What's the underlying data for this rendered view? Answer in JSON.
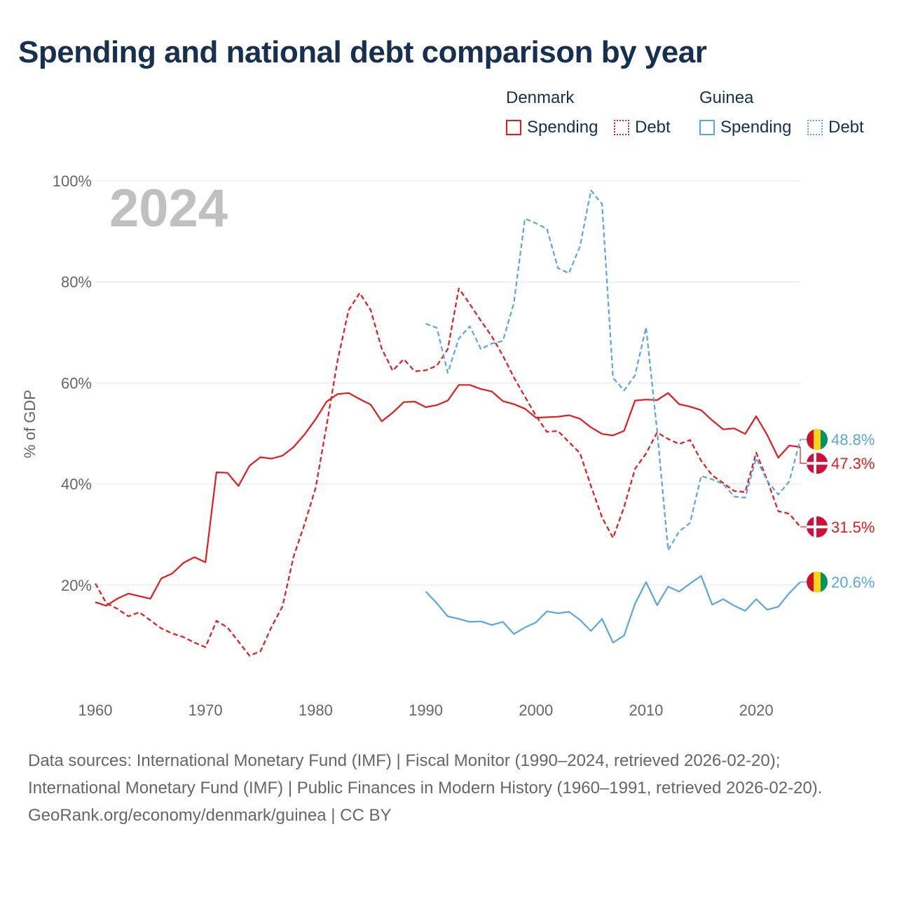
{
  "title": "Spending and national debt comparison by year",
  "legend": {
    "countries": [
      {
        "name": "Denmark",
        "color": "#e41a1c",
        "items": [
          {
            "label": "Spending",
            "style": "solid"
          },
          {
            "label": "Debt",
            "style": "dotted"
          }
        ]
      },
      {
        "name": "Guinea",
        "color": "#5aa6e0",
        "items": [
          {
            "label": "Spending",
            "style": "solid"
          },
          {
            "label": "Debt",
            "style": "dotted"
          }
        ]
      }
    ]
  },
  "footer": {
    "sources": "Data sources: International Monetary Fund (IMF) | Fiscal Monitor (1990–2024, retrieved 2026-02-20); International Monetary Fund (IMF) | Public Finances in Modern History (1960–1991, retrieved 2026-02-20).",
    "credit": "GeoRank.org/economy/denmark/guinea | CC BY"
  },
  "chart_data": {
    "type": "line",
    "year_watermark": "2024",
    "ylabel": "% of GDP",
    "xlabel": "",
    "xlim": [
      1960,
      2024
    ],
    "ylim": [
      0,
      100
    ],
    "x_ticks": [
      1960,
      1970,
      1980,
      1990,
      2000,
      2010,
      2020
    ],
    "y_ticks": [
      20,
      40,
      60,
      80,
      100
    ],
    "y_tick_labels": [
      "20%",
      "40%",
      "60%",
      "80%",
      "100%"
    ],
    "grid": true,
    "series": [
      {
        "name": "Denmark Spending",
        "country": "Denmark",
        "color": "#e41a1c",
        "dash": "solid",
        "end_label": "47.3%",
        "flag": "denmark",
        "points": [
          [
            1960,
            16.6
          ],
          [
            1961,
            15.9
          ],
          [
            1962,
            17.3
          ],
          [
            1963,
            18.3
          ],
          [
            1964,
            17.8
          ],
          [
            1965,
            17.3
          ],
          [
            1966,
            21.3
          ],
          [
            1967,
            22.3
          ],
          [
            1968,
            24.4
          ],
          [
            1969,
            25.5
          ],
          [
            1970,
            24.5
          ],
          [
            1971,
            42.3
          ],
          [
            1972,
            42.2
          ],
          [
            1973,
            39.6
          ],
          [
            1974,
            43.6
          ],
          [
            1975,
            45.3
          ],
          [
            1976,
            45.0
          ],
          [
            1977,
            45.6
          ],
          [
            1978,
            47.3
          ],
          [
            1979,
            49.8
          ],
          [
            1980,
            52.8
          ],
          [
            1981,
            56.3
          ],
          [
            1982,
            57.8
          ],
          [
            1983,
            58.0
          ],
          [
            1984,
            56.8
          ],
          [
            1985,
            55.7
          ],
          [
            1986,
            52.4
          ],
          [
            1987,
            54.1
          ],
          [
            1988,
            56.2
          ],
          [
            1989,
            56.3
          ],
          [
            1990,
            55.2
          ],
          [
            1991,
            55.6
          ],
          [
            1992,
            56.5
          ],
          [
            1993,
            59.6
          ],
          [
            1994,
            59.6
          ],
          [
            1995,
            58.8
          ],
          [
            1996,
            58.3
          ],
          [
            1997,
            56.4
          ],
          [
            1998,
            55.8
          ],
          [
            1999,
            54.9
          ],
          [
            2000,
            53.1
          ],
          [
            2001,
            53.2
          ],
          [
            2002,
            53.3
          ],
          [
            2003,
            53.6
          ],
          [
            2004,
            52.9
          ],
          [
            2005,
            51.2
          ],
          [
            2006,
            49.9
          ],
          [
            2007,
            49.6
          ],
          [
            2008,
            50.5
          ],
          [
            2009,
            56.5
          ],
          [
            2010,
            56.7
          ],
          [
            2011,
            56.6
          ],
          [
            2012,
            58.0
          ],
          [
            2013,
            55.8
          ],
          [
            2014,
            55.3
          ],
          [
            2015,
            54.6
          ],
          [
            2016,
            52.6
          ],
          [
            2017,
            50.8
          ],
          [
            2018,
            51.0
          ],
          [
            2019,
            49.9
          ],
          [
            2020,
            53.4
          ],
          [
            2021,
            49.7
          ],
          [
            2022,
            45.2
          ],
          [
            2023,
            47.6
          ],
          [
            2024,
            47.3
          ]
        ]
      },
      {
        "name": "Denmark Debt",
        "country": "Denmark",
        "color": "#e41a1c",
        "dash": "dashed",
        "end_label": "31.5%",
        "flag": "denmark",
        "points": [
          [
            1960,
            20.3
          ],
          [
            1961,
            16.4
          ],
          [
            1962,
            15.3
          ],
          [
            1963,
            13.8
          ],
          [
            1964,
            14.6
          ],
          [
            1965,
            13.0
          ],
          [
            1966,
            11.4
          ],
          [
            1967,
            10.4
          ],
          [
            1968,
            9.7
          ],
          [
            1969,
            8.6
          ],
          [
            1970,
            7.7
          ],
          [
            1971,
            12.9
          ],
          [
            1972,
            11.6
          ],
          [
            1973,
            8.8
          ],
          [
            1974,
            6.0
          ],
          [
            1975,
            6.9
          ],
          [
            1976,
            11.7
          ],
          [
            1977,
            15.8
          ],
          [
            1978,
            25.6
          ],
          [
            1979,
            32.1
          ],
          [
            1980,
            39.2
          ],
          [
            1981,
            51.6
          ],
          [
            1982,
            64.5
          ],
          [
            1983,
            74.4
          ],
          [
            1984,
            77.8
          ],
          [
            1985,
            74.4
          ],
          [
            1986,
            66.8
          ],
          [
            1987,
            62.4
          ],
          [
            1988,
            64.7
          ],
          [
            1989,
            62.3
          ],
          [
            1990,
            62.5
          ],
          [
            1991,
            63.4
          ],
          [
            1992,
            66.7
          ],
          [
            1993,
            78.7
          ],
          [
            1994,
            75.6
          ],
          [
            1995,
            72.3
          ],
          [
            1996,
            69.2
          ],
          [
            1997,
            65.4
          ],
          [
            1998,
            61.1
          ],
          [
            1999,
            57.3
          ],
          [
            2000,
            53.5
          ],
          [
            2001,
            50.3
          ],
          [
            2002,
            50.5
          ],
          [
            2003,
            48.3
          ],
          [
            2004,
            46.1
          ],
          [
            2005,
            39.6
          ],
          [
            2006,
            33.4
          ],
          [
            2007,
            29.3
          ],
          [
            2008,
            35.4
          ],
          [
            2009,
            43.0
          ],
          [
            2010,
            46.0
          ],
          [
            2011,
            50.2
          ],
          [
            2012,
            48.9
          ],
          [
            2013,
            47.9
          ],
          [
            2014,
            48.7
          ],
          [
            2015,
            44.6
          ],
          [
            2016,
            41.7
          ],
          [
            2017,
            40.2
          ],
          [
            2018,
            38.6
          ],
          [
            2019,
            38.4
          ],
          [
            2020,
            46.2
          ],
          [
            2021,
            40.8
          ],
          [
            2022,
            34.6
          ],
          [
            2023,
            34.1
          ],
          [
            2024,
            31.5
          ]
        ]
      },
      {
        "name": "Guinea Spending",
        "country": "Guinea",
        "color": "#5aa6e0",
        "dash": "solid",
        "end_label": "20.6%",
        "flag": "guinea",
        "points": [
          [
            1990,
            18.7
          ],
          [
            1991,
            16.4
          ],
          [
            1992,
            13.8
          ],
          [
            1993,
            13.3
          ],
          [
            1994,
            12.7
          ],
          [
            1995,
            12.8
          ],
          [
            1996,
            12.1
          ],
          [
            1997,
            12.7
          ],
          [
            1998,
            10.3
          ],
          [
            1999,
            11.6
          ],
          [
            2000,
            12.6
          ],
          [
            2001,
            14.8
          ],
          [
            2002,
            14.4
          ],
          [
            2003,
            14.7
          ],
          [
            2004,
            13.1
          ],
          [
            2005,
            10.9
          ],
          [
            2006,
            13.3
          ],
          [
            2007,
            8.6
          ],
          [
            2008,
            10.0
          ],
          [
            2009,
            16.3
          ],
          [
            2010,
            20.6
          ],
          [
            2011,
            16.0
          ],
          [
            2012,
            19.7
          ],
          [
            2013,
            18.7
          ],
          [
            2014,
            20.3
          ],
          [
            2015,
            21.8
          ],
          [
            2016,
            16.1
          ],
          [
            2017,
            17.2
          ],
          [
            2018,
            15.9
          ],
          [
            2019,
            14.9
          ],
          [
            2020,
            17.2
          ],
          [
            2021,
            15.1
          ],
          [
            2022,
            15.7
          ],
          [
            2023,
            18.4
          ],
          [
            2024,
            20.6
          ]
        ]
      },
      {
        "name": "Guinea Debt",
        "country": "Guinea",
        "color": "#5aa6e0",
        "dash": "dashed",
        "end_label": "48.8%",
        "flag": "guinea",
        "points": [
          [
            1990,
            71.7
          ],
          [
            1991,
            70.9
          ],
          [
            1992,
            62.0
          ],
          [
            1993,
            68.8
          ],
          [
            1994,
            71.2
          ],
          [
            1995,
            66.7
          ],
          [
            1996,
            67.8
          ],
          [
            1997,
            68.3
          ],
          [
            1998,
            75.8
          ],
          [
            1999,
            92.5
          ],
          [
            2000,
            91.6
          ],
          [
            2001,
            90.5
          ],
          [
            2002,
            82.7
          ],
          [
            2003,
            81.7
          ],
          [
            2004,
            87.0
          ],
          [
            2005,
            98.1
          ],
          [
            2006,
            95.4
          ],
          [
            2007,
            61.0
          ],
          [
            2008,
            58.5
          ],
          [
            2009,
            61.5
          ],
          [
            2010,
            71.0
          ],
          [
            2011,
            50.5
          ],
          [
            2012,
            26.9
          ],
          [
            2013,
            30.6
          ],
          [
            2014,
            32.3
          ],
          [
            2015,
            41.6
          ],
          [
            2016,
            40.9
          ],
          [
            2017,
            40.0
          ],
          [
            2018,
            37.5
          ],
          [
            2019,
            37.3
          ],
          [
            2020,
            45.1
          ],
          [
            2021,
            40.6
          ],
          [
            2022,
            37.9
          ],
          [
            2023,
            40.5
          ],
          [
            2024,
            48.8
          ]
        ]
      }
    ]
  }
}
